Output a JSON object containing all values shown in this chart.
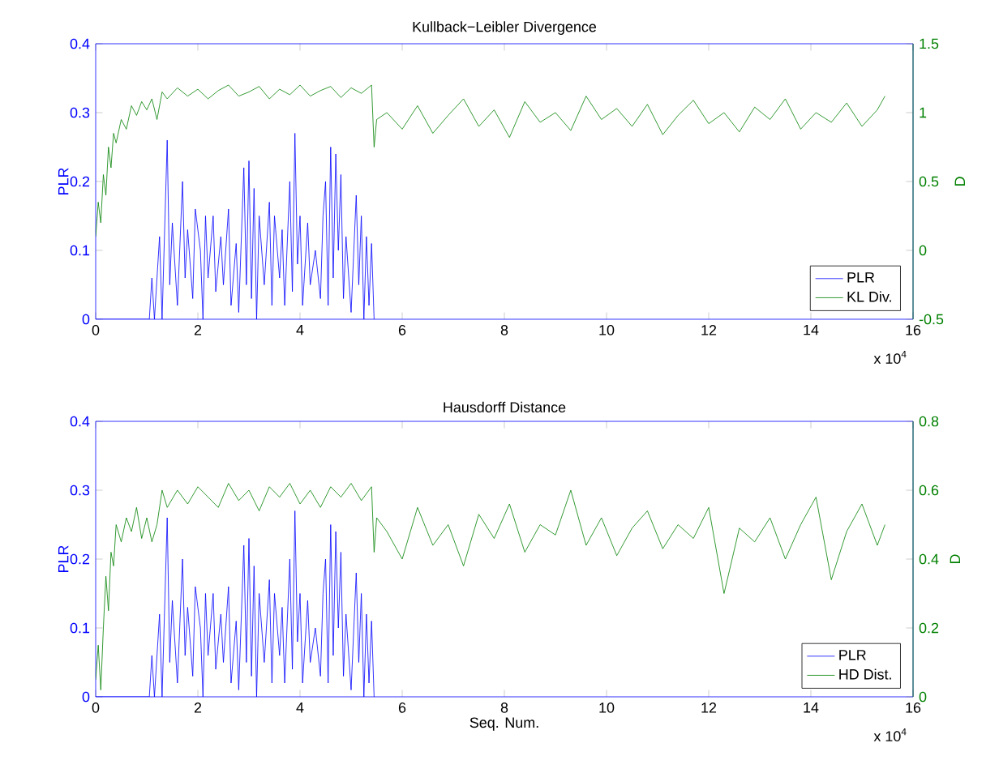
{
  "chart_data": [
    {
      "type": "line",
      "title": "Kullback−Leibler Divergence",
      "ylabel": "PLR",
      "y2label": "D",
      "xlim": [
        0,
        16
      ],
      "xticks": [
        0,
        2,
        4,
        6,
        8,
        10,
        12,
        14,
        16
      ],
      "ylim": [
        0,
        0.4
      ],
      "yticks": [
        0,
        0.1,
        0.2,
        0.3,
        0.4
      ],
      "y2lim": [
        -0.5,
        1.5
      ],
      "y2ticks": [
        -0.5,
        0,
        0.5,
        1,
        1.5
      ],
      "legend": "bottom right",
      "annotations": [
        "x 10$^{4}$"
      ],
      "series": [
        {
          "name": "PLR",
          "color": "#0000ff",
          "x": [
            0,
            1.05,
            1.1,
            1.15,
            1.25,
            1.3,
            1.4,
            1.45,
            1.5,
            1.6,
            1.7,
            1.75,
            1.8,
            1.9,
            1.95,
            2.05,
            2.1,
            2.15,
            2.2,
            2.3,
            2.35,
            2.45,
            2.5,
            2.6,
            2.65,
            2.75,
            2.8,
            2.9,
            2.95,
            3.0,
            3.05,
            3.1,
            3.15,
            3.2,
            3.3,
            3.4,
            3.45,
            3.5,
            3.6,
            3.65,
            3.7,
            3.8,
            3.85,
            3.9,
            3.95,
            4.0,
            4.05,
            4.15,
            4.2,
            4.3,
            4.4,
            4.45,
            4.5,
            4.55,
            4.6,
            4.65,
            4.7,
            4.75,
            4.8,
            4.85,
            4.9,
            5.0,
            5.1,
            5.15,
            5.2,
            5.25,
            5.3,
            5.35,
            5.4,
            5.45
          ],
          "values": [
            0,
            0,
            0.06,
            0,
            0.12,
            0,
            0.26,
            0.05,
            0.14,
            0.02,
            0.2,
            0.06,
            0.13,
            0.03,
            0.16,
            0.1,
            0,
            0.15,
            0.06,
            0.15,
            0.04,
            0.12,
            0.05,
            0.16,
            0.02,
            0.11,
            0.01,
            0.22,
            0.05,
            0.23,
            0.03,
            0.19,
            0,
            0.15,
            0.05,
            0.17,
            0.02,
            0.15,
            0.06,
            0.13,
            0.02,
            0.2,
            0.04,
            0.27,
            0.08,
            0.15,
            0.02,
            0.14,
            0.05,
            0.1,
            0.03,
            0.15,
            0.2,
            0.02,
            0.25,
            0.06,
            0.24,
            0.1,
            0.21,
            0.03,
            0.12,
            0.01,
            0.18,
            0.05,
            0.15,
            0,
            0.12,
            0.02,
            0.11,
            0
          ]
        },
        {
          "name": "KL Div.",
          "color": "#008000",
          "axis": "y2",
          "x": [
            0,
            0.05,
            0.1,
            0.15,
            0.2,
            0.25,
            0.3,
            0.35,
            0.4,
            0.5,
            0.6,
            0.7,
            0.8,
            0.9,
            1.0,
            1.1,
            1.2,
            1.3,
            1.4,
            1.6,
            1.8,
            2.0,
            2.2,
            2.4,
            2.6,
            2.8,
            3.0,
            3.2,
            3.4,
            3.6,
            3.8,
            4.0,
            4.2,
            4.4,
            4.6,
            4.8,
            5.0,
            5.2,
            5.4,
            5.45,
            5.5,
            5.7,
            6.0,
            6.3,
            6.6,
            6.9,
            7.2,
            7.5,
            7.8,
            8.1,
            8.4,
            8.7,
            9.0,
            9.3,
            9.6,
            9.9,
            10.2,
            10.5,
            10.8,
            11.1,
            11.4,
            11.7,
            12.0,
            12.3,
            12.6,
            12.9,
            13.2,
            13.5,
            13.8,
            14.1,
            14.4,
            14.7,
            15.0,
            15.3,
            15.45
          ],
          "values": [
            0.1,
            0.35,
            0.2,
            0.55,
            0.4,
            0.75,
            0.6,
            0.85,
            0.78,
            0.95,
            0.88,
            1.05,
            0.98,
            1.08,
            1.02,
            1.1,
            0.95,
            1.15,
            1.1,
            1.18,
            1.12,
            1.17,
            1.1,
            1.16,
            1.2,
            1.12,
            1.15,
            1.19,
            1.1,
            1.17,
            1.13,
            1.2,
            1.12,
            1.16,
            1.19,
            1.11,
            1.18,
            1.14,
            1.2,
            0.75,
            0.95,
            1.0,
            0.88,
            1.05,
            0.85,
            0.98,
            1.1,
            0.9,
            1.02,
            0.82,
            1.08,
            0.93,
            1.0,
            0.87,
            1.12,
            0.95,
            1.03,
            0.9,
            1.06,
            0.84,
            0.98,
            1.09,
            0.92,
            1.0,
            0.86,
            1.04,
            0.95,
            1.1,
            0.88,
            1.0,
            0.93,
            1.07,
            0.9,
            1.02,
            1.12
          ]
        }
      ]
    },
    {
      "type": "line",
      "title": "Hausdorff Distance",
      "xlabel": "Seq. Num.",
      "ylabel": "PLR",
      "y2label": "D",
      "xlim": [
        0,
        16
      ],
      "xticks": [
        0,
        2,
        4,
        6,
        8,
        10,
        12,
        14,
        16
      ],
      "ylim": [
        0,
        0.4
      ],
      "yticks": [
        0,
        0.1,
        0.2,
        0.3,
        0.4
      ],
      "y2lim": [
        0,
        0.8
      ],
      "y2ticks": [
        0,
        0.2,
        0.4,
        0.6,
        0.8
      ],
      "legend": "bottom right",
      "annotations": [
        "x 10$^{4}$"
      ],
      "series": [
        {
          "name": "PLR",
          "color": "#0000ff",
          "x": [
            0,
            1.05,
            1.1,
            1.15,
            1.25,
            1.3,
            1.4,
            1.45,
            1.5,
            1.6,
            1.7,
            1.75,
            1.8,
            1.9,
            1.95,
            2.05,
            2.1,
            2.15,
            2.2,
            2.3,
            2.35,
            2.45,
            2.5,
            2.6,
            2.65,
            2.75,
            2.8,
            2.9,
            2.95,
            3.0,
            3.05,
            3.1,
            3.15,
            3.2,
            3.3,
            3.4,
            3.45,
            3.5,
            3.6,
            3.65,
            3.7,
            3.8,
            3.85,
            3.9,
            3.95,
            4.0,
            4.05,
            4.15,
            4.2,
            4.3,
            4.4,
            4.45,
            4.5,
            4.55,
            4.6,
            4.65,
            4.7,
            4.75,
            4.8,
            4.85,
            4.9,
            5.0,
            5.1,
            5.15,
            5.2,
            5.25,
            5.3,
            5.35,
            5.4,
            5.45
          ],
          "values": [
            0,
            0,
            0.06,
            0,
            0.12,
            0,
            0.26,
            0.05,
            0.14,
            0.02,
            0.2,
            0.06,
            0.13,
            0.03,
            0.16,
            0.1,
            0,
            0.15,
            0.06,
            0.15,
            0.04,
            0.12,
            0.05,
            0.16,
            0.02,
            0.11,
            0.01,
            0.22,
            0.05,
            0.23,
            0.03,
            0.19,
            0,
            0.15,
            0.05,
            0.17,
            0.02,
            0.15,
            0.06,
            0.13,
            0.02,
            0.2,
            0.04,
            0.27,
            0.08,
            0.15,
            0.02,
            0.14,
            0.05,
            0.1,
            0.03,
            0.15,
            0.2,
            0.02,
            0.25,
            0.06,
            0.24,
            0.1,
            0.21,
            0.03,
            0.12,
            0.01,
            0.18,
            0.05,
            0.15,
            0,
            0.12,
            0.02,
            0.11,
            0
          ]
        },
        {
          "name": "HD Dist.",
          "color": "#008000",
          "axis": "y2",
          "x": [
            0,
            0.05,
            0.1,
            0.15,
            0.2,
            0.25,
            0.3,
            0.35,
            0.4,
            0.5,
            0.6,
            0.7,
            0.8,
            0.9,
            1.0,
            1.1,
            1.2,
            1.3,
            1.4,
            1.6,
            1.8,
            2.0,
            2.2,
            2.4,
            2.6,
            2.8,
            3.0,
            3.2,
            3.4,
            3.6,
            3.8,
            4.0,
            4.2,
            4.4,
            4.6,
            4.8,
            5.0,
            5.2,
            5.4,
            5.45,
            5.5,
            5.7,
            6.0,
            6.3,
            6.6,
            6.9,
            7.2,
            7.5,
            7.8,
            8.1,
            8.4,
            8.7,
            9.0,
            9.3,
            9.6,
            9.9,
            10.2,
            10.5,
            10.8,
            11.1,
            11.4,
            11.7,
            12.0,
            12.3,
            12.6,
            12.9,
            13.2,
            13.5,
            13.8,
            14.1,
            14.4,
            14.7,
            15.0,
            15.3,
            15.45
          ],
          "values": [
            0.05,
            0.15,
            0.02,
            0.2,
            0.35,
            0.25,
            0.42,
            0.38,
            0.5,
            0.45,
            0.52,
            0.48,
            0.55,
            0.46,
            0.52,
            0.45,
            0.5,
            0.6,
            0.55,
            0.6,
            0.56,
            0.61,
            0.58,
            0.55,
            0.62,
            0.57,
            0.6,
            0.54,
            0.61,
            0.58,
            0.62,
            0.56,
            0.6,
            0.55,
            0.61,
            0.58,
            0.62,
            0.57,
            0.61,
            0.42,
            0.52,
            0.48,
            0.4,
            0.55,
            0.44,
            0.5,
            0.38,
            0.53,
            0.46,
            0.56,
            0.42,
            0.5,
            0.47,
            0.6,
            0.44,
            0.52,
            0.41,
            0.49,
            0.54,
            0.43,
            0.5,
            0.46,
            0.55,
            0.3,
            0.49,
            0.45,
            0.52,
            0.4,
            0.5,
            0.58,
            0.34,
            0.48,
            0.56,
            0.44,
            0.5
          ]
        }
      ]
    }
  ]
}
